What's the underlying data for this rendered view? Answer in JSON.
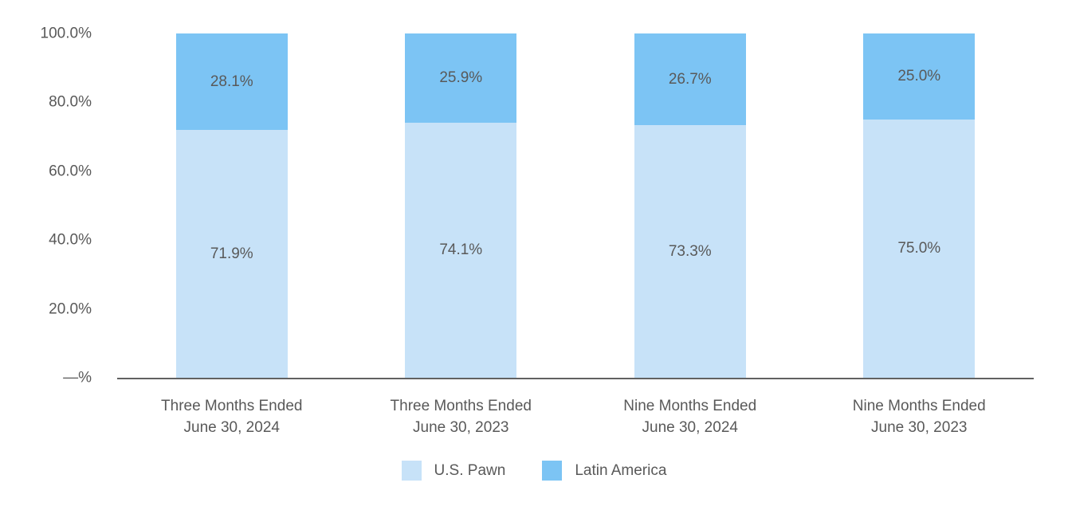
{
  "colors": {
    "us_pawn": "#C7E2F8",
    "latin_america": "#7CC4F4",
    "text": "#595959",
    "axis_line": "#616161",
    "background": "#FFFFFF"
  },
  "chart_data": {
    "type": "bar",
    "stacked": true,
    "stacked_total": 100,
    "title": "",
    "xlabel": "",
    "ylabel": "",
    "grid": false,
    "categories": [
      "Three Months Ended\nJune 30, 2024",
      "Three Months Ended\nJune 30, 2023",
      "Nine Months Ended\nJune 30, 2024",
      "Nine Months Ended\nJune 30, 2023"
    ],
    "series": [
      {
        "name": "U.S. Pawn",
        "color_key": "us_pawn",
        "values": [
          71.9,
          74.1,
          73.3,
          75.0
        ],
        "labels": [
          "71.9%",
          "74.1%",
          "73.3%",
          "75.0%"
        ]
      },
      {
        "name": "Latin America",
        "color_key": "latin_america",
        "values": [
          28.1,
          25.9,
          26.7,
          25.0
        ],
        "labels": [
          "28.1%",
          "25.9%",
          "26.7%",
          "25.0%"
        ]
      }
    ],
    "y_axis": {
      "ylim": [
        0,
        100
      ],
      "ticks": [
        {
          "value": 0,
          "label": "—%"
        },
        {
          "value": 20,
          "label": "20.0%"
        },
        {
          "value": 40,
          "label": "40.0%"
        },
        {
          "value": 60,
          "label": "60.0%"
        },
        {
          "value": 80,
          "label": "80.0%"
        },
        {
          "value": 100,
          "label": "100.0%"
        }
      ]
    },
    "legend": {
      "position": "bottom",
      "items": [
        "U.S. Pawn",
        "Latin America"
      ]
    }
  }
}
